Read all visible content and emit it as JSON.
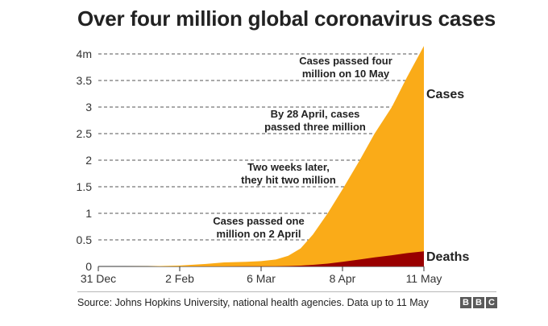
{
  "title": "Over four million global coronavirus cases",
  "source": "Source: Johns Hopkins University, national health agencies. Data up to 11 May",
  "logo": [
    "B",
    "B",
    "C"
  ],
  "colors": {
    "cases": "#faab18",
    "deaths": "#990000",
    "grid": "#555555"
  },
  "chart_data": {
    "type": "area",
    "title": "Over four million global coronavirus cases",
    "xlabel": "",
    "ylabel": "",
    "ylim": [
      0,
      4
    ],
    "y_unit": "million",
    "y_ticks": [
      0,
      0.5,
      1,
      1.5,
      2,
      2.5,
      3,
      3.5,
      4
    ],
    "y_tick_labels": [
      "0",
      "0.5",
      "1",
      "1.5",
      "2",
      "2.5",
      "3",
      "3.5",
      "4m"
    ],
    "x_tick_labels": [
      "31 Dec",
      "2 Feb",
      "6 Mar",
      "8 Apr",
      "11 May"
    ],
    "grid": "horizontal dashed",
    "x": [
      "31 Dec",
      "10 Jan",
      "20 Jan",
      "2 Feb",
      "12 Feb",
      "20 Feb",
      "29 Feb",
      "6 Mar",
      "12 Mar",
      "17 Mar",
      "22 Mar",
      "27 Mar",
      "2 Apr",
      "8 Apr",
      "15 Apr",
      "21 Apr",
      "28 Apr",
      "4 May",
      "11 May"
    ],
    "series": [
      {
        "name": "Cases",
        "values": [
          0,
          0,
          0.001,
          0.017,
          0.045,
          0.076,
          0.086,
          0.1,
          0.13,
          0.2,
          0.34,
          0.6,
          1.0,
          1.45,
          2.0,
          2.5,
          3.0,
          3.55,
          4.15
        ]
      },
      {
        "name": "Deaths",
        "values": [
          0,
          0,
          0,
          0.0004,
          0.0011,
          0.0022,
          0.003,
          0.0034,
          0.0046,
          0.008,
          0.015,
          0.03,
          0.053,
          0.088,
          0.13,
          0.17,
          0.21,
          0.25,
          0.285
        ]
      }
    ],
    "annotations": [
      {
        "text": [
          "Cases passed four",
          "million on 10 May"
        ],
        "x": "10 May",
        "y": 4
      },
      {
        "text": [
          "By 28 April, cases",
          "passed three million"
        ],
        "x": "28 Apr",
        "y": 3
      },
      {
        "text": [
          "Two weeks later,",
          "they hit two million"
        ],
        "x": "15 Apr",
        "y": 2
      },
      {
        "text": [
          "Cases passed one",
          "million on 2 April"
        ],
        "x": "2 Apr",
        "y": 1
      }
    ]
  }
}
